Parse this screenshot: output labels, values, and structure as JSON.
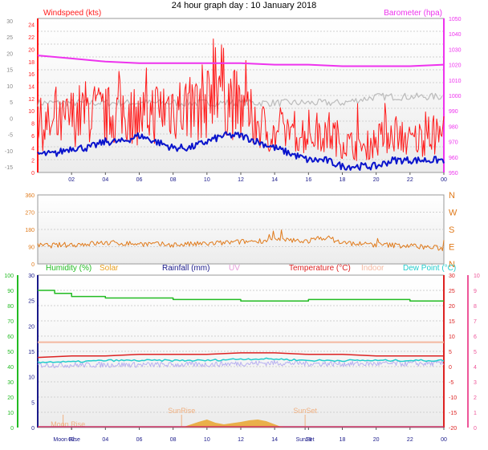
{
  "title": "24 hour graph day : 10 January 2018",
  "colors": {
    "windspeed": "#ff1a1a",
    "gust_avg": "#0a14cc",
    "barometer": "#ee33ee",
    "wind_avg_grey": "#bbbbbb",
    "direction": "#e07a1a",
    "humidity": "#22bb22",
    "solar": "#e8a020",
    "rainfall": "#1a1a8a",
    "temperature": "#dd2222",
    "indoor": "#f4b8a0",
    "dew_point": "#22cccc",
    "plot_bg": "#ececec"
  },
  "chart_data": [
    {
      "type": "line",
      "name": "wind-chart",
      "xlim": [
        0,
        24
      ],
      "x_ticks": [
        "02",
        "04",
        "06",
        "08",
        "10",
        "12",
        "14",
        "16",
        "18",
        "20",
        "22",
        "00"
      ],
      "left_label": "Windspeed (kts)",
      "right_label": "Barometer (hpa)",
      "left_ticks": [
        "24",
        "22",
        "20",
        "18",
        "16",
        "14",
        "12",
        "10",
        "8",
        "6",
        "4",
        "2",
        "0"
      ],
      "ylim_left": [
        0,
        25
      ],
      "outer_left_ticks": [
        "30",
        "25",
        "20",
        "15",
        "10",
        "5",
        "0",
        "-5",
        "-10",
        "-15"
      ],
      "right_ticks": [
        "1050",
        "1040",
        "1030",
        "1020",
        "1010",
        "1000",
        "990",
        "980",
        "970",
        "960",
        "950"
      ],
      "ylim_right": [
        950,
        1050
      ],
      "series": [
        {
          "name": "Windspeed (kts)",
          "x": [
            0,
            1,
            2,
            3,
            4,
            5,
            6,
            7,
            8,
            9,
            10,
            10.5,
            11,
            12,
            13,
            14,
            15,
            16,
            17,
            18,
            19,
            20,
            21,
            22,
            23,
            24
          ],
          "values": [
            8,
            7,
            9,
            10,
            9,
            10,
            9,
            10,
            11,
            10,
            12,
            18,
            13,
            10,
            8,
            6,
            7,
            6,
            7,
            5,
            4,
            5,
            7,
            5,
            6,
            6
          ]
        },
        {
          "name": "Gust average",
          "x": [
            0,
            1,
            2,
            3,
            4,
            5,
            6,
            7,
            8,
            9,
            10,
            11,
            12,
            13,
            14,
            15,
            16,
            17,
            18,
            19,
            20,
            21,
            22,
            23,
            24
          ],
          "values": [
            3,
            3,
            4,
            4,
            5,
            5,
            6,
            5,
            4,
            4,
            5,
            6,
            6,
            5,
            4,
            3,
            2,
            2,
            1,
            1,
            1,
            2,
            2,
            2,
            2
          ]
        },
        {
          "name": "Barometer (hpa)",
          "x": [
            0,
            2,
            4,
            6,
            8,
            10,
            12,
            14,
            16,
            18,
            20,
            22,
            24
          ],
          "values": [
            1026,
            1024,
            1022,
            1021,
            1021,
            1021,
            1021,
            1020,
            1020,
            1019,
            1019,
            1019,
            1020
          ]
        },
        {
          "name": "Wind average",
          "x": [
            0,
            2,
            4,
            6,
            8,
            10,
            12,
            14,
            16,
            18,
            20,
            22,
            24
          ],
          "values": [
            1,
            1,
            1,
            1,
            1,
            1,
            1,
            1,
            1,
            1,
            2,
            2,
            2
          ]
        }
      ]
    },
    {
      "type": "line",
      "name": "direction-chart",
      "xlim": [
        0,
        24
      ],
      "ylim": [
        0,
        360
      ],
      "left_ticks": [
        "360",
        "270",
        "180",
        "90",
        "0"
      ],
      "right_ticks": [
        "N",
        "W",
        "S",
        "E",
        "N"
      ],
      "series": [
        {
          "name": "Wind direction",
          "x": [
            0,
            2,
            4,
            6,
            8,
            10,
            12,
            14,
            16,
            17,
            18,
            20,
            22,
            24
          ],
          "values": [
            95,
            100,
            110,
            105,
            100,
            105,
            115,
            125,
            120,
            140,
            110,
            100,
            95,
            80
          ]
        }
      ]
    },
    {
      "type": "line",
      "name": "temp-chart",
      "xlim": [
        0,
        24
      ],
      "x_ticks": [
        "Moon Rise",
        "02",
        "04",
        "06",
        "08",
        "10",
        "12",
        "14",
        "SunSet",
        "16",
        "18",
        "20",
        "22",
        "00"
      ],
      "legend": [
        "Humidity (%)",
        "Solar",
        "Rainfall (mm)",
        "UV",
        "Temperature (°C)",
        "Indoor",
        "Dew Point (°C)"
      ],
      "left_outer_ticks": [
        "100",
        "90",
        "80",
        "70",
        "60",
        "50",
        "40",
        "30",
        "20",
        "10",
        "0"
      ],
      "left_inner_ticks": [
        "30",
        "25",
        "20",
        "15",
        "10",
        "5",
        "0"
      ],
      "right_inner_ticks": [
        "30",
        "25",
        "20",
        "15",
        "10",
        "5",
        "0",
        "-5",
        "-10",
        "-15",
        "-20"
      ],
      "right_outer_ticks": [
        "10",
        "9",
        "8",
        "7",
        "6",
        "5",
        "4",
        "3",
        "2",
        "1",
        "0"
      ],
      "ylim_temp": [
        -20,
        30
      ],
      "ylim_humidity": [
        0,
        100
      ],
      "annotations": [
        "Moon Rise",
        "SunRise",
        "SunSet"
      ],
      "series": [
        {
          "name": "Humidity (%)",
          "x": [
            0,
            1,
            2,
            4,
            6,
            8,
            10,
            12,
            14,
            16,
            18,
            20,
            22,
            24
          ],
          "values": [
            90,
            88,
            86,
            85,
            85,
            84,
            84,
            83,
            83,
            84,
            84,
            84,
            83,
            82
          ]
        },
        {
          "name": "Indoor",
          "x": [
            0,
            4,
            8,
            12,
            16,
            20,
            24
          ],
          "values": [
            8,
            8,
            8,
            8,
            8,
            8,
            8
          ]
        },
        {
          "name": "Temperature (°C)",
          "x": [
            0,
            2,
            4,
            6,
            8,
            10,
            12,
            14,
            16,
            18,
            20,
            22,
            24
          ],
          "values": [
            3,
            3.5,
            3.5,
            4,
            4,
            4,
            4.5,
            4.5,
            4,
            4,
            3.5,
            3.5,
            3.5
          ]
        },
        {
          "name": "Dew Point (°C)",
          "x": [
            0,
            2,
            4,
            6,
            8,
            10,
            12,
            14,
            16,
            18,
            20,
            22,
            24
          ],
          "values": [
            1.5,
            1.5,
            2,
            2,
            2,
            2,
            2.5,
            2.5,
            2,
            2,
            2,
            2,
            2
          ]
        },
        {
          "name": "UV",
          "x": [
            0,
            2,
            4,
            6,
            8,
            10,
            12,
            14,
            16,
            18,
            20,
            22,
            24
          ],
          "values": [
            0.5,
            0.5,
            0.6,
            0.6,
            0.6,
            0.7,
            1,
            1.2,
            1,
            0.9,
            0.9,
            1,
            1
          ]
        },
        {
          "name": "Solar",
          "x": [
            8.5,
            9.5,
            10,
            10.5,
            11,
            12,
            12.5,
            13,
            13.5,
            14,
            14.5
          ],
          "values": [
            0,
            0.7,
            1,
            0.6,
            0.4,
            0.7,
            0.9,
            1,
            0.8,
            0.4,
            0
          ]
        }
      ]
    }
  ]
}
